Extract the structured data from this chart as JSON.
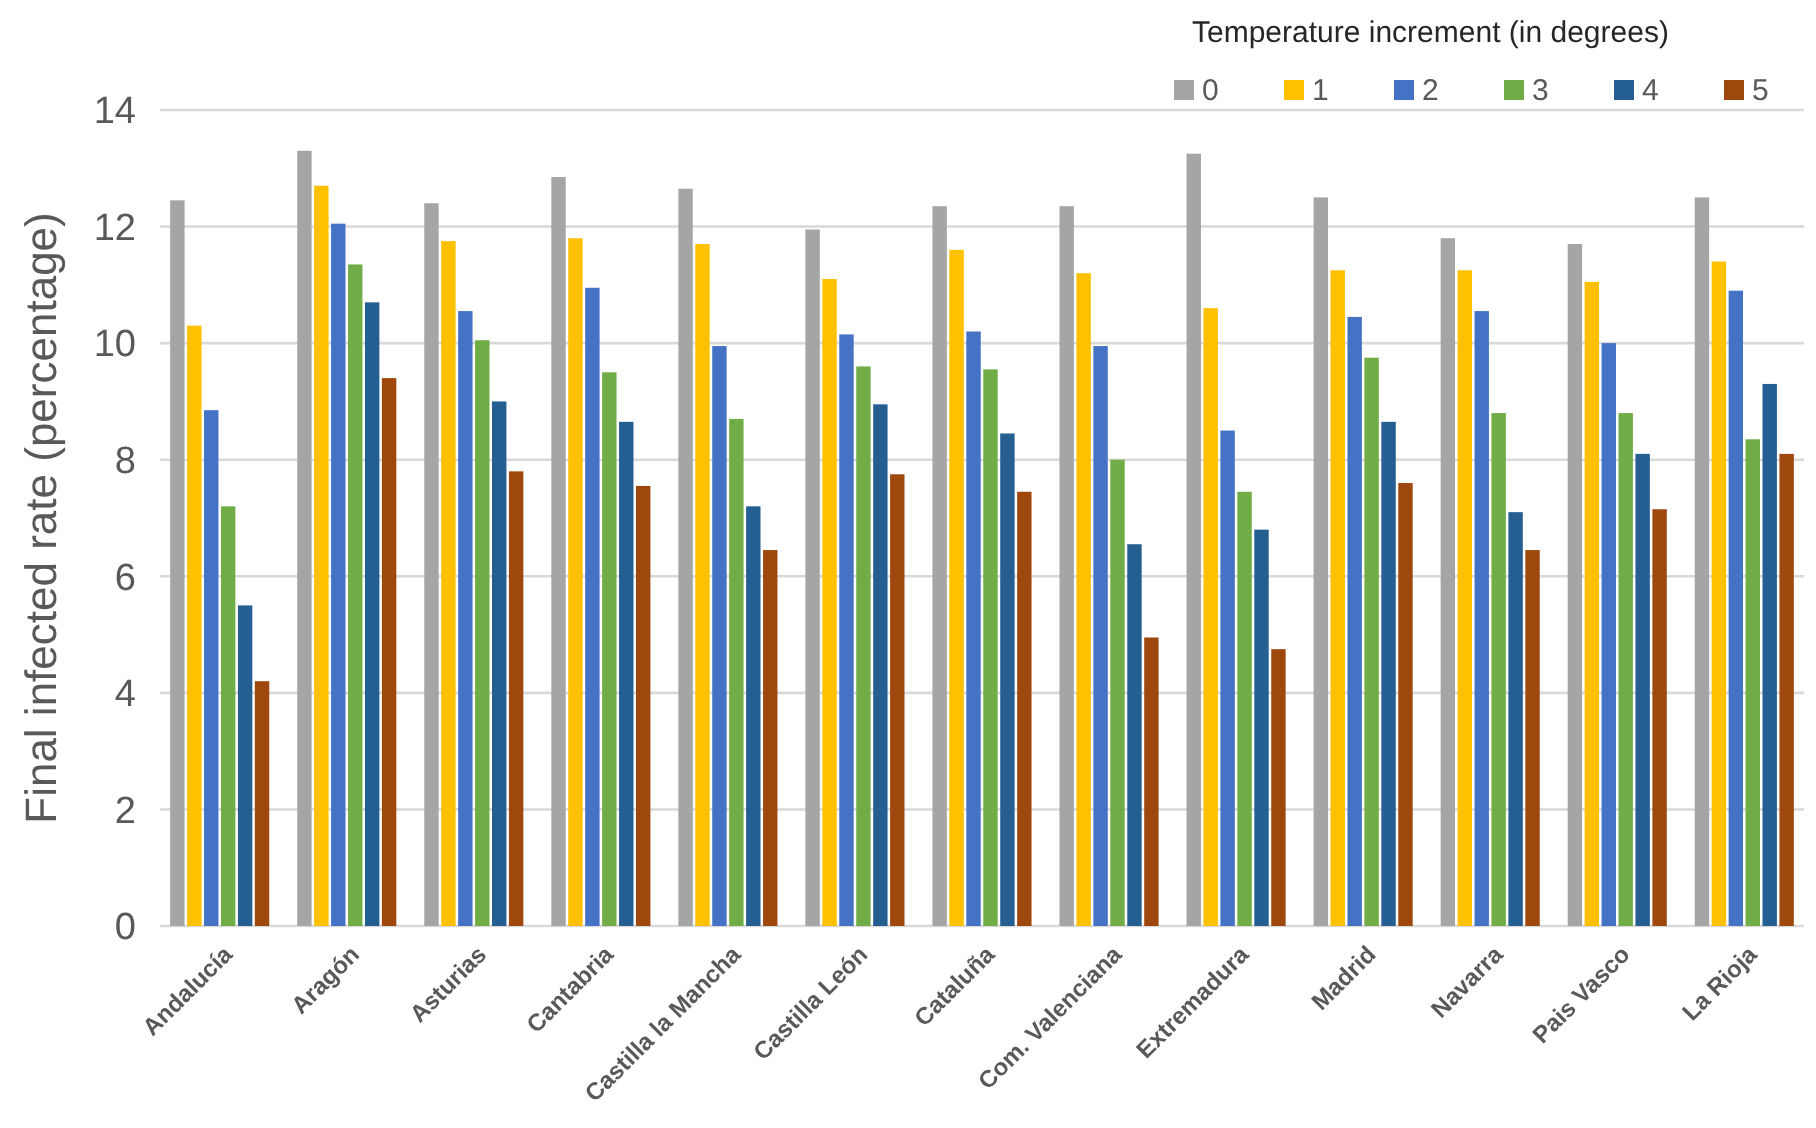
{
  "chart_data": {
    "type": "bar",
    "ylabel": "Final infected rate (percentage)",
    "legend_title": "Temperature increment (in degrees)",
    "legend": "top right",
    "grid": "y",
    "categories": [
      "Andalucía",
      "Aragón",
      "Asturias",
      "Cantabria",
      "Castilla la Mancha",
      "Castilla León",
      "Cataluña",
      "Com. Valenciana",
      "Extremadura",
      "Madrid",
      "Navarra",
      "Pais Vasco",
      "La Rioja"
    ],
    "ylim": [
      0,
      14
    ],
    "yticks": [
      0,
      2,
      4,
      6,
      8,
      10,
      12,
      14
    ],
    "series": [
      {
        "name": "0",
        "color": "#a5a5a5",
        "values": [
          12.45,
          13.3,
          12.4,
          12.85,
          12.65,
          11.95,
          12.35,
          12.35,
          13.25,
          12.5,
          11.8,
          11.7,
          12.5
        ]
      },
      {
        "name": "1",
        "color": "#ffc000",
        "values": [
          10.3,
          12.7,
          11.75,
          11.8,
          11.7,
          11.1,
          11.6,
          11.2,
          10.6,
          11.25,
          11.25,
          11.05,
          11.4
        ]
      },
      {
        "name": "2",
        "color": "#4472c4",
        "values": [
          8.85,
          12.05,
          10.55,
          10.95,
          9.95,
          10.15,
          10.2,
          9.95,
          8.5,
          10.45,
          10.55,
          10.0,
          10.9
        ]
      },
      {
        "name": "3",
        "color": "#70ad47",
        "values": [
          7.2,
          11.35,
          10.05,
          9.5,
          8.7,
          9.6,
          9.55,
          8.0,
          7.45,
          9.75,
          8.8,
          8.8,
          8.35
        ]
      },
      {
        "name": "4",
        "color": "#255e91",
        "values": [
          5.5,
          10.7,
          9.0,
          8.65,
          7.2,
          8.95,
          8.45,
          6.55,
          6.8,
          8.65,
          7.1,
          8.1,
          9.3
        ]
      },
      {
        "name": "5",
        "color": "#9e480e",
        "values": [
          4.2,
          9.4,
          7.8,
          7.55,
          6.45,
          7.75,
          7.45,
          4.95,
          4.75,
          7.6,
          6.45,
          7.15,
          8.1
        ]
      }
    ]
  }
}
